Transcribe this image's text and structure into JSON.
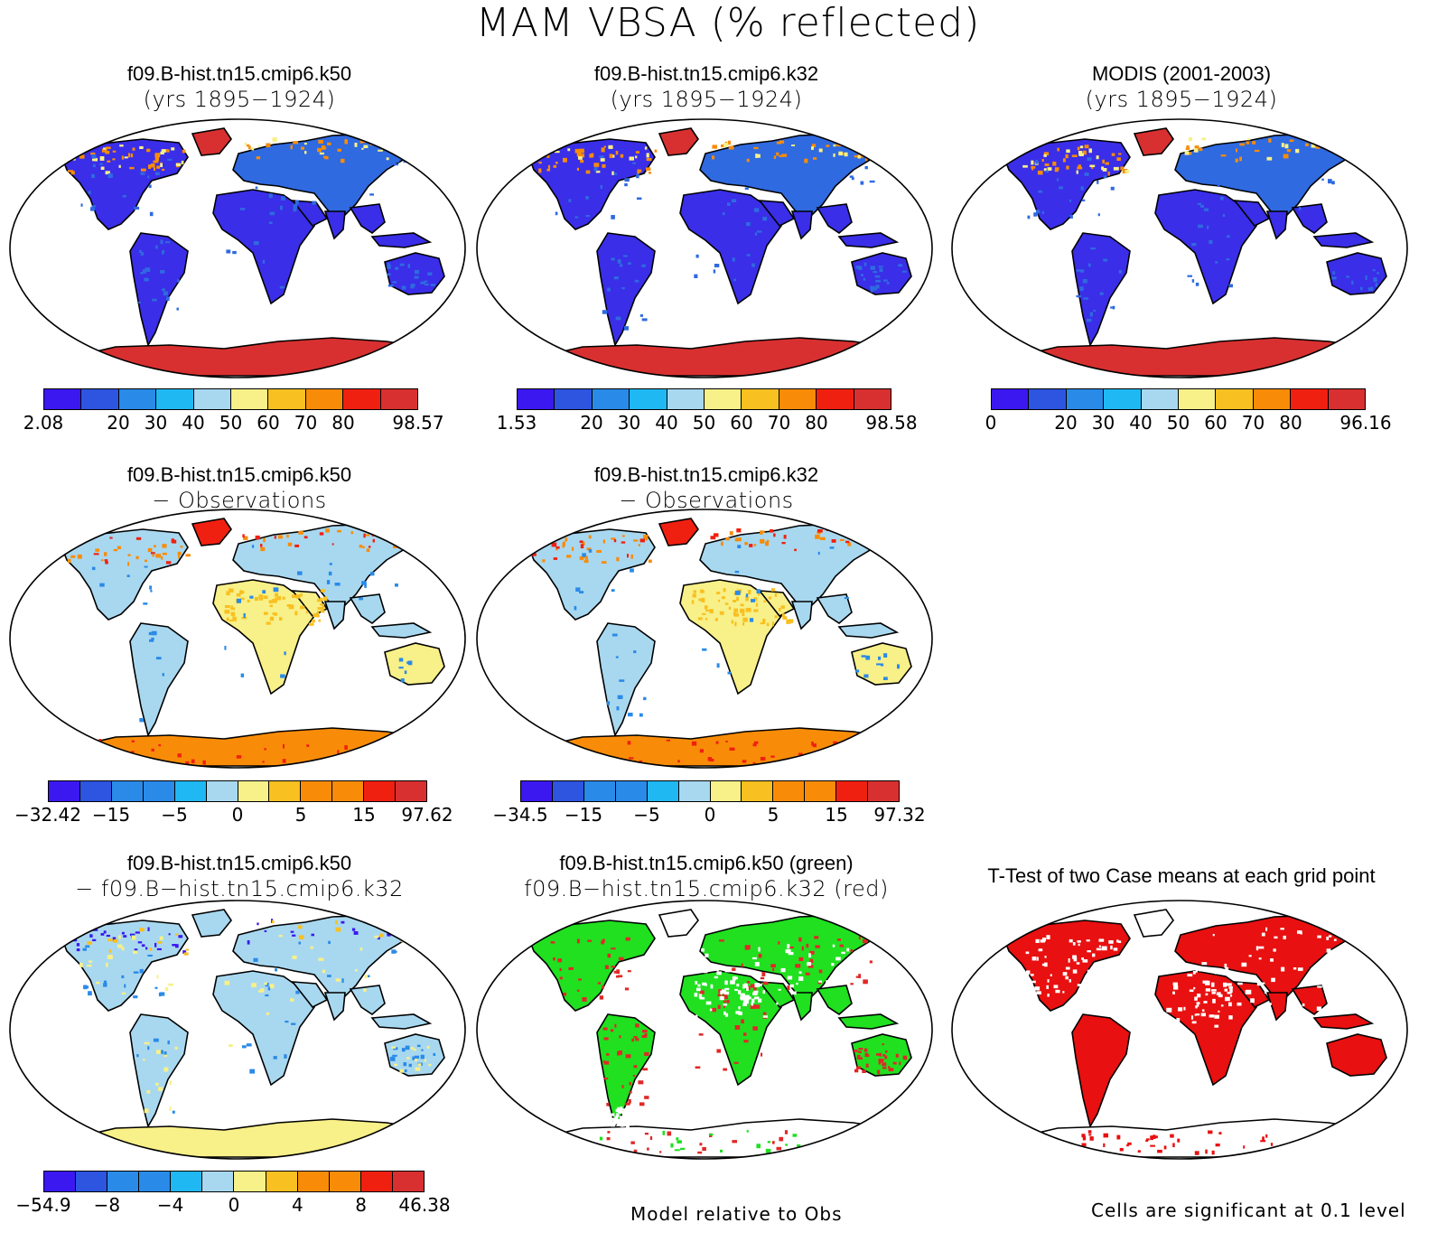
{
  "title": "MAM VBSA (% reflected)",
  "colors": {
    "scale": [
      "#3c18f0",
      "#2d55e0",
      "#2a8ae8",
      "#1fb8f2",
      "#a8d8f0",
      "#f8f088",
      "#f8c020",
      "#f88c08",
      "#f02010",
      "#d83030"
    ],
    "land_blue": "#3a2ee8",
    "land_mid": "#2f6ae0",
    "ice_red": "#d83030",
    "anom_land": "#a8d8f0",
    "diff_green": "#20e020",
    "diff_red": "#e02828",
    "sig_red": "#e81010"
  },
  "panels": [
    {
      "id": "p1",
      "title": "f09.B-hist.tn15.cmip6.k50",
      "subtitle": "(yrs 1895−1924)",
      "style": "abs",
      "colorbar": {
        "labels": [
          "2.08",
          "20",
          "30",
          "40",
          "50",
          "60",
          "70",
          "80",
          "98.57"
        ]
      }
    },
    {
      "id": "p2",
      "title": "f09.B-hist.tn15.cmip6.k32",
      "subtitle": "(yrs 1895−1924)",
      "style": "abs",
      "colorbar": {
        "labels": [
          "1.53",
          "20",
          "30",
          "40",
          "50",
          "60",
          "70",
          "80",
          "98.58"
        ]
      }
    },
    {
      "id": "p3",
      "title": "MODIS (2001-2003)",
      "subtitle": "(yrs 1895−1924)",
      "style": "abs",
      "colorbar": {
        "labels": [
          "0",
          "20",
          "30",
          "40",
          "50",
          "60",
          "70",
          "80",
          "96.16"
        ]
      }
    },
    {
      "id": "p4",
      "title": "f09.B-hist.tn15.cmip6.k50",
      "subtitle": "− Observations",
      "style": "anom",
      "colorbar": {
        "labels": [
          "−32.42",
          "−15",
          "−5",
          "0",
          "5",
          "15",
          "97.62"
        ]
      }
    },
    {
      "id": "p5",
      "title": "f09.B-hist.tn15.cmip6.k32",
      "subtitle": "− Observations",
      "style": "anom",
      "colorbar": {
        "labels": [
          "−34.5",
          "−15",
          "−5",
          "0",
          "5",
          "15",
          "97.32"
        ]
      }
    },
    {
      "id": "p6",
      "title": "f09.B-hist.tn15.cmip6.k50",
      "subtitle": "− f09.B−hist.tn15.cmip6.k32",
      "style": "diff",
      "colorbar": {
        "labels": [
          "−54.9",
          "−8",
          "−4",
          "0",
          "4",
          "8",
          "46.38"
        ]
      }
    },
    {
      "id": "p7",
      "title": "f09.B-hist.tn15.cmip6.k50 (green)",
      "subtitle": "f09.B−hist.tn15.cmip6.k32 (red)",
      "style": "greenred",
      "caption": "Model relative to Obs"
    },
    {
      "id": "p8",
      "title": "T-Test of two Case means at each grid point",
      "subtitle": "",
      "style": "sig",
      "caption": "Cells are significant at 0.1 level"
    }
  ]
}
